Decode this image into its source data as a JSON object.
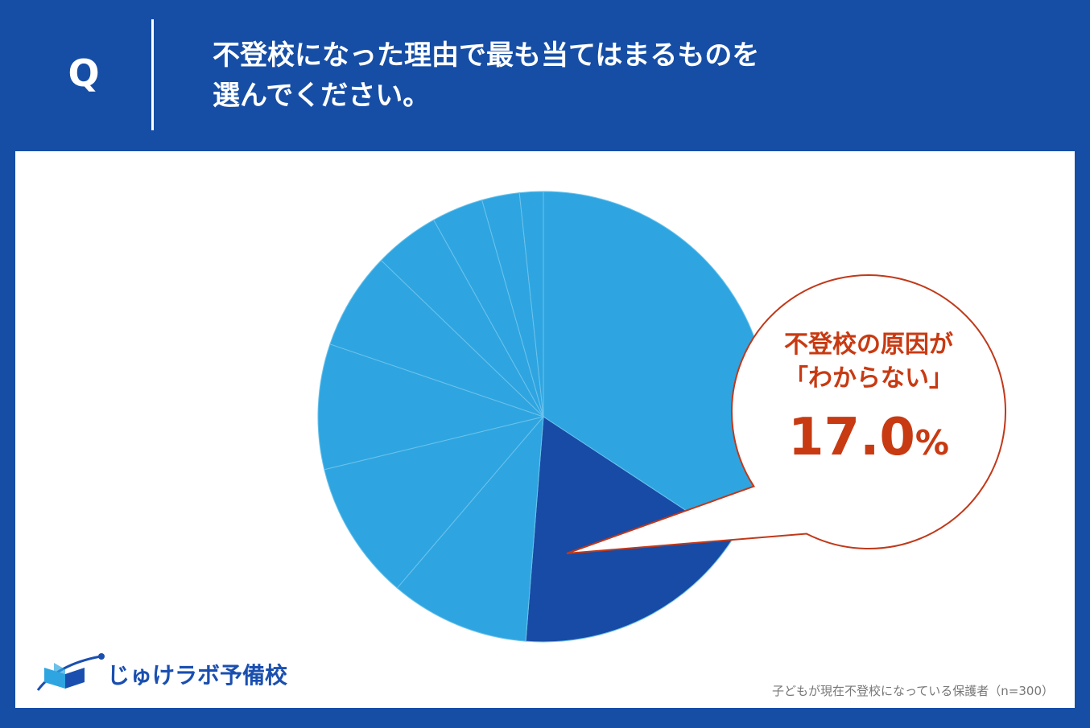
{
  "header": {
    "q_label": "Q",
    "question_lines": [
      "不登校になった理由で最も当てはまるものを",
      "選んでください。"
    ]
  },
  "colors": {
    "header_bg": "#164ea6",
    "slice_default": "#2ea5e0",
    "slice_highlight": "#174ba6",
    "callout": "#c83a12"
  },
  "callout": {
    "line1": "不登校の原因が",
    "line2": "「わからない」",
    "value": "17.0",
    "unit": "%"
  },
  "chart_data": {
    "type": "pie",
    "start": "12 o'clock",
    "direction": "clockwise",
    "highlight_index": 1,
    "values": [
      34.3,
      17.0,
      10.0,
      10.0,
      9.0,
      7.0,
      4.7,
      3.7,
      2.7,
      1.7
    ]
  },
  "brand": {
    "name": "じゅけラボ予備校"
  },
  "footnote": "子どもが現在不登校になっている保護者（n=300）"
}
